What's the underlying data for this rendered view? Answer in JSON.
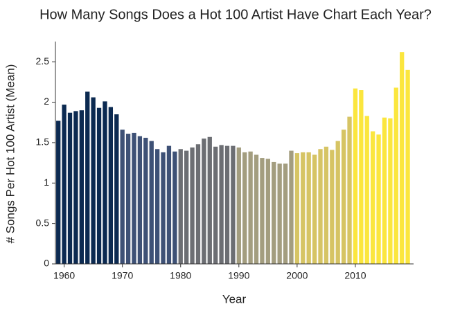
{
  "chart_data": {
    "type": "bar",
    "title": "How Many Songs Does a Hot 100 Artist Have Chart Each Year?",
    "x_label": "Year",
    "y_label": "# Songs Per Hot 100 Artist (Mean)",
    "x": [
      1959,
      1960,
      1961,
      1962,
      1963,
      1964,
      1965,
      1966,
      1967,
      1968,
      1969,
      1970,
      1971,
      1972,
      1973,
      1974,
      1975,
      1976,
      1977,
      1978,
      1979,
      1980,
      1981,
      1982,
      1983,
      1984,
      1985,
      1986,
      1987,
      1988,
      1989,
      1990,
      1991,
      1992,
      1993,
      1994,
      1995,
      1996,
      1997,
      1998,
      1999,
      2000,
      2001,
      2002,
      2003,
      2004,
      2005,
      2006,
      2007,
      2008,
      2009,
      2010,
      2011,
      2012,
      2013,
      2014,
      2015,
      2016,
      2017,
      2018,
      2019
    ],
    "values": [
      1.77,
      1.97,
      1.87,
      1.89,
      1.9,
      2.13,
      2.06,
      1.93,
      2.01,
      1.94,
      1.85,
      1.66,
      1.61,
      1.62,
      1.58,
      1.56,
      1.52,
      1.42,
      1.38,
      1.46,
      1.39,
      1.42,
      1.4,
      1.44,
      1.48,
      1.55,
      1.57,
      1.45,
      1.47,
      1.46,
      1.46,
      1.44,
      1.38,
      1.39,
      1.35,
      1.31,
      1.3,
      1.26,
      1.24,
      1.24,
      1.4,
      1.37,
      1.38,
      1.38,
      1.35,
      1.42,
      1.45,
      1.41,
      1.52,
      1.66,
      1.82,
      2.17,
      2.15,
      1.83,
      1.64,
      1.6,
      1.81,
      1.8,
      2.18,
      2.62,
      2.4
    ],
    "colors": [
      "#0c2a51",
      "#0c2a51",
      "#0c2a51",
      "#0c2a51",
      "#0c2a51",
      "#0c2a51",
      "#0c2a51",
      "#0c2a51",
      "#0c2a51",
      "#0c2a51",
      "#0c2a51",
      "#3e5176",
      "#3e5176",
      "#3e5176",
      "#3e5176",
      "#3e5176",
      "#3e5176",
      "#3e5176",
      "#3e5176",
      "#3e5176",
      "#3e5176",
      "#6c6e73",
      "#6c6e73",
      "#6c6e73",
      "#6c6e73",
      "#6c6e73",
      "#6c6e73",
      "#6c6e73",
      "#6c6e73",
      "#6c6e73",
      "#6c6e73",
      "#a39d7f",
      "#a39d7f",
      "#a39d7f",
      "#a39d7f",
      "#a39d7f",
      "#a39d7f",
      "#a39d7f",
      "#a39d7f",
      "#a39d7f",
      "#a39d7f",
      "#d6c464",
      "#d6c464",
      "#d6c464",
      "#d6c464",
      "#d6c464",
      "#d6c464",
      "#d6c464",
      "#d6c464",
      "#d6c464",
      "#d6c464",
      "#fbe63e",
      "#fbe63e",
      "#fbe63e",
      "#fbe63e",
      "#fbe63e",
      "#fbe63e",
      "#fbe63e",
      "#fbe63e",
      "#fbe63e",
      "#fbe63e"
    ],
    "xlim": [
      1958.5,
      2020
    ],
    "xticks": [
      1960,
      1970,
      1980,
      1990,
      2000,
      2010
    ],
    "ylim": [
      0,
      2.75
    ],
    "yticks": [
      0,
      0.5,
      1,
      1.5,
      2,
      2.5
    ],
    "grid": false
  }
}
